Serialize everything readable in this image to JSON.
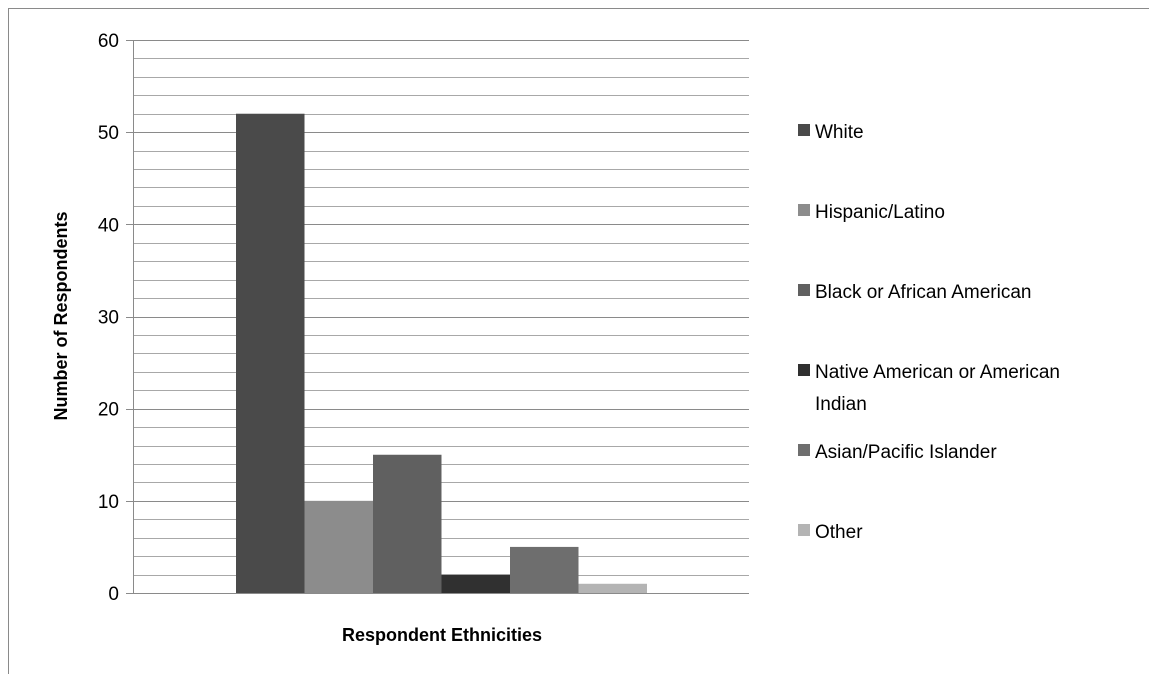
{
  "chart_data": {
    "type": "bar",
    "title": "",
    "xlabel": "Respondent Ethnicities",
    "ylabel": "Number of Respondents",
    "ylim": [
      0,
      60
    ],
    "yticks": [
      0,
      10,
      20,
      30,
      40,
      50,
      60
    ],
    "minor_step": 2,
    "grid": true,
    "legend_position": "right",
    "categories": [
      ""
    ],
    "series": [
      {
        "name": "White",
        "values": [
          52
        ],
        "color": "#4a4a4a"
      },
      {
        "name": "Hispanic/Latino",
        "values": [
          10
        ],
        "color": "#8c8c8c"
      },
      {
        "name": "Black or African American",
        "values": [
          15
        ],
        "color": "#606060"
      },
      {
        "name": "Native American or American Indian",
        "values": [
          2
        ],
        "color": "#303030"
      },
      {
        "name": "Asian/Pacific Islander",
        "values": [
          5
        ],
        "color": "#6e6e6e"
      },
      {
        "name": "Other",
        "values": [
          1
        ],
        "color": "#b4b4b4"
      }
    ],
    "legend_lines": [
      [
        "White"
      ],
      [
        "Hispanic/Latino"
      ],
      [
        "Black or African American"
      ],
      [
        "Native American or American",
        "Indian"
      ],
      [
        "Asian/Pacific Islander"
      ],
      [
        "Other"
      ]
    ]
  }
}
